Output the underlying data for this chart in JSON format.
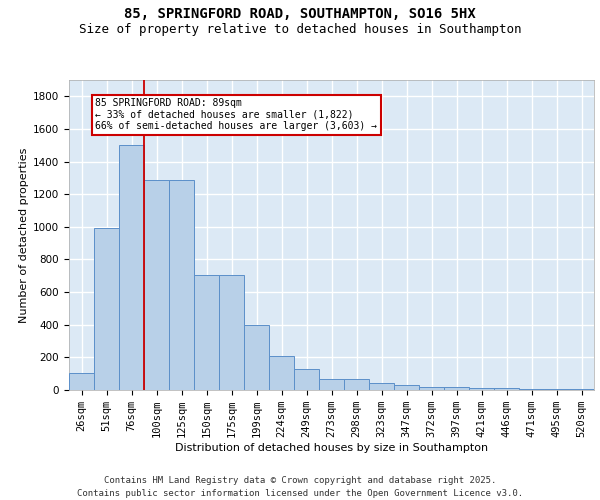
{
  "title_line1": "85, SPRINGFORD ROAD, SOUTHAMPTON, SO16 5HX",
  "title_line2": "Size of property relative to detached houses in Southampton",
  "xlabel": "Distribution of detached houses by size in Southampton",
  "ylabel": "Number of detached properties",
  "categories": [
    "26sqm",
    "51sqm",
    "76sqm",
    "100sqm",
    "125sqm",
    "150sqm",
    "175sqm",
    "199sqm",
    "224sqm",
    "249sqm",
    "273sqm",
    "298sqm",
    "323sqm",
    "347sqm",
    "372sqm",
    "397sqm",
    "421sqm",
    "446sqm",
    "471sqm",
    "495sqm",
    "520sqm"
  ],
  "values": [
    105,
    995,
    1500,
    1290,
    1290,
    705,
    705,
    400,
    210,
    130,
    70,
    70,
    40,
    30,
    18,
    18,
    10,
    10,
    5,
    5,
    5
  ],
  "bar_color": "#b8d0e8",
  "bar_edge_color": "#5b8fc9",
  "vline_color": "#cc0000",
  "annotation_text": "85 SPRINGFORD ROAD: 89sqm\n← 33% of detached houses are smaller (1,822)\n66% of semi-detached houses are larger (3,603) →",
  "annotation_box_color": "#ffffff",
  "annotation_box_edge": "#cc0000",
  "ylim": [
    0,
    1900
  ],
  "yticks": [
    0,
    200,
    400,
    600,
    800,
    1000,
    1200,
    1400,
    1600,
    1800
  ],
  "background_color": "#dce9f5",
  "grid_color": "#ffffff",
  "footer_line1": "Contains HM Land Registry data © Crown copyright and database right 2025.",
  "footer_line2": "Contains public sector information licensed under the Open Government Licence v3.0.",
  "title_fontsize": 10,
  "subtitle_fontsize": 9,
  "axis_fontsize": 8,
  "tick_fontsize": 7.5,
  "footer_fontsize": 6.5,
  "annot_fontsize": 7
}
